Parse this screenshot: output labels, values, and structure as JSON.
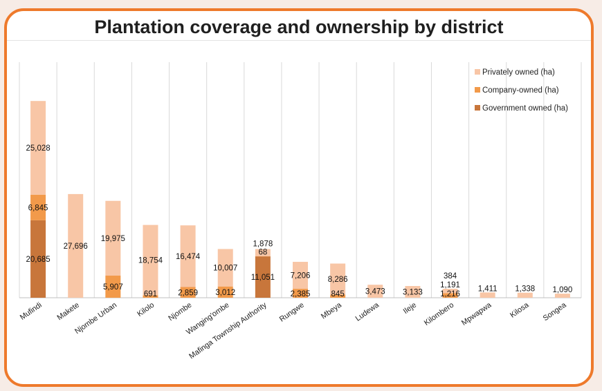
{
  "chart_data": {
    "type": "bar",
    "stacked": true,
    "title": "Plantation coverage and ownership by district",
    "categories": [
      "Mufindi",
      "Makete",
      "Njombe Urban",
      "Kilolo",
      "Njombe",
      "Wanging'ombe",
      "Mafinga Township Authority",
      "Rungwe",
      "Mbeya",
      "Ludewa",
      "Ileje",
      "Kilombero",
      "Mpwapwa",
      "Kilosa",
      "Songea"
    ],
    "series": [
      {
        "name": "Government owned (ha)",
        "color": "#c8763b",
        "values": [
          20685,
          null,
          null,
          null,
          null,
          null,
          11051,
          null,
          null,
          null,
          null,
          null,
          null,
          null,
          null
        ]
      },
      {
        "name": "Company-owned (ha)",
        "color": "#f29a4a",
        "values": [
          6845,
          null,
          5907,
          691,
          2859,
          3012,
          68,
          2385,
          845,
          null,
          null,
          1216,
          null,
          null,
          null
        ]
      },
      {
        "name": "Privately owned (ha)",
        "color": "#f8c6a6",
        "values": [
          25028,
          27696,
          19975,
          18754,
          16474,
          10007,
          1878,
          7206,
          8286,
          3473,
          3133,
          1191,
          1411,
          1338,
          1090
        ]
      }
    ],
    "extra_labels": [
      {
        "category": "Kilombero",
        "text": "384"
      }
    ],
    "data_labels": [
      {
        "category": "Mufindi",
        "series": 0,
        "text": "20,685"
      },
      {
        "category": "Mufindi",
        "series": 1,
        "text": "6,845"
      },
      {
        "category": "Mufindi",
        "series": 2,
        "text": "25,028"
      },
      {
        "category": "Makete",
        "series": 2,
        "text": "27,696"
      },
      {
        "category": "Njombe Urban",
        "series": 1,
        "text": "5,907"
      },
      {
        "category": "Njombe Urban",
        "series": 2,
        "text": "19,975"
      },
      {
        "category": "Kilolo",
        "series": 1,
        "text": "691"
      },
      {
        "category": "Kilolo",
        "series": 2,
        "text": "18,754"
      },
      {
        "category": "Njombe",
        "series": 1,
        "text": "2,859"
      },
      {
        "category": "Njombe",
        "series": 2,
        "text": "16,474"
      },
      {
        "category": "Wanging'ombe",
        "series": 1,
        "text": "3,012"
      },
      {
        "category": "Wanging'ombe",
        "series": 2,
        "text": "10,007"
      },
      {
        "category": "Mafinga Township Authority",
        "series": 0,
        "text": "11,051"
      },
      {
        "category": "Mafinga Township Authority",
        "series": 1,
        "text": "68"
      },
      {
        "category": "Mafinga Township Authority",
        "series": 2,
        "text": "1,878"
      },
      {
        "category": "Rungwe",
        "series": 1,
        "text": "2,385"
      },
      {
        "category": "Rungwe",
        "series": 2,
        "text": "7,206"
      },
      {
        "category": "Mbeya",
        "series": 1,
        "text": "845"
      },
      {
        "category": "Mbeya",
        "series": 2,
        "text": "8,286"
      },
      {
        "category": "Ludewa",
        "series": 2,
        "text": "3,473"
      },
      {
        "category": "Ileje",
        "series": 2,
        "text": "3,133"
      },
      {
        "category": "Kilombero",
        "series": 1,
        "text": "1,216"
      },
      {
        "category": "Kilombero",
        "series": 2,
        "text": "1,191"
      },
      {
        "category": "Mpwapwa",
        "series": 2,
        "text": "1,411"
      },
      {
        "category": "Kilosa",
        "series": 2,
        "text": "1,338"
      },
      {
        "category": "Songea",
        "series": 2,
        "text": "1,090"
      }
    ],
    "legend_order": [
      2,
      1,
      0
    ],
    "legend_position": "top-right",
    "grid": "vertical category separators",
    "ylim": [
      0,
      62000
    ]
  }
}
